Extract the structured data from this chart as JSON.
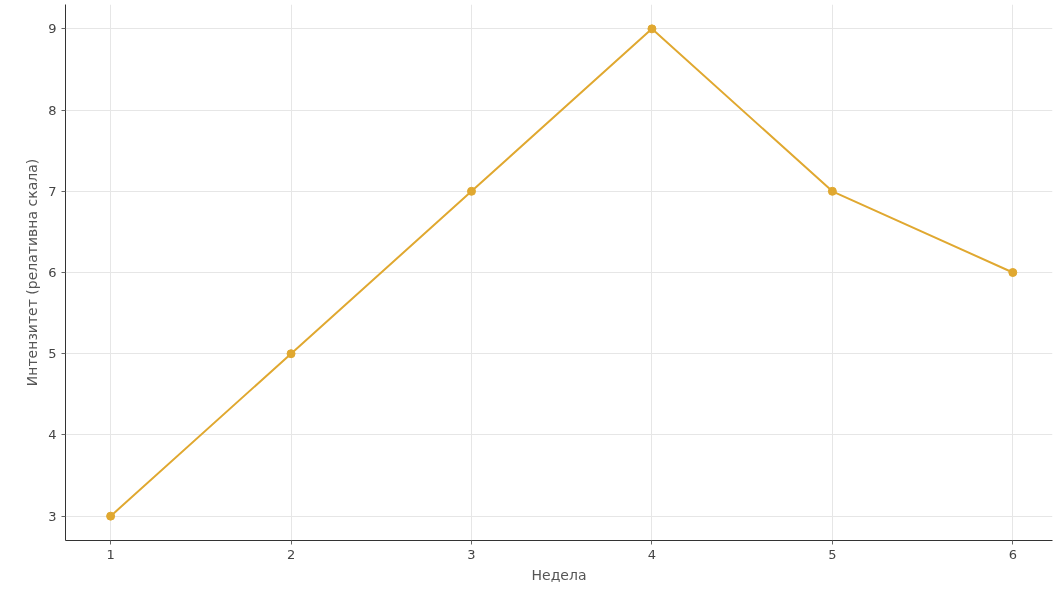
{
  "chart_data": {
    "type": "line",
    "xlabel": "Недела",
    "ylabel": "Интензитет (релативна скала)",
    "x": [
      1,
      2,
      3,
      4,
      5,
      6
    ],
    "series": [
      {
        "color": "#e0a830",
        "values": [
          3,
          5,
          7,
          9,
          7,
          6
        ]
      }
    ],
    "xlim": [
      0.75,
      6.22
    ],
    "xticks": [
      1,
      2,
      3,
      4,
      5,
      6
    ],
    "ylim": [
      2.7,
      9.3
    ],
    "yticks": [
      3,
      4,
      5,
      6,
      7,
      8,
      9
    ],
    "grid": true,
    "marker": "circle",
    "line_style": "solid"
  }
}
